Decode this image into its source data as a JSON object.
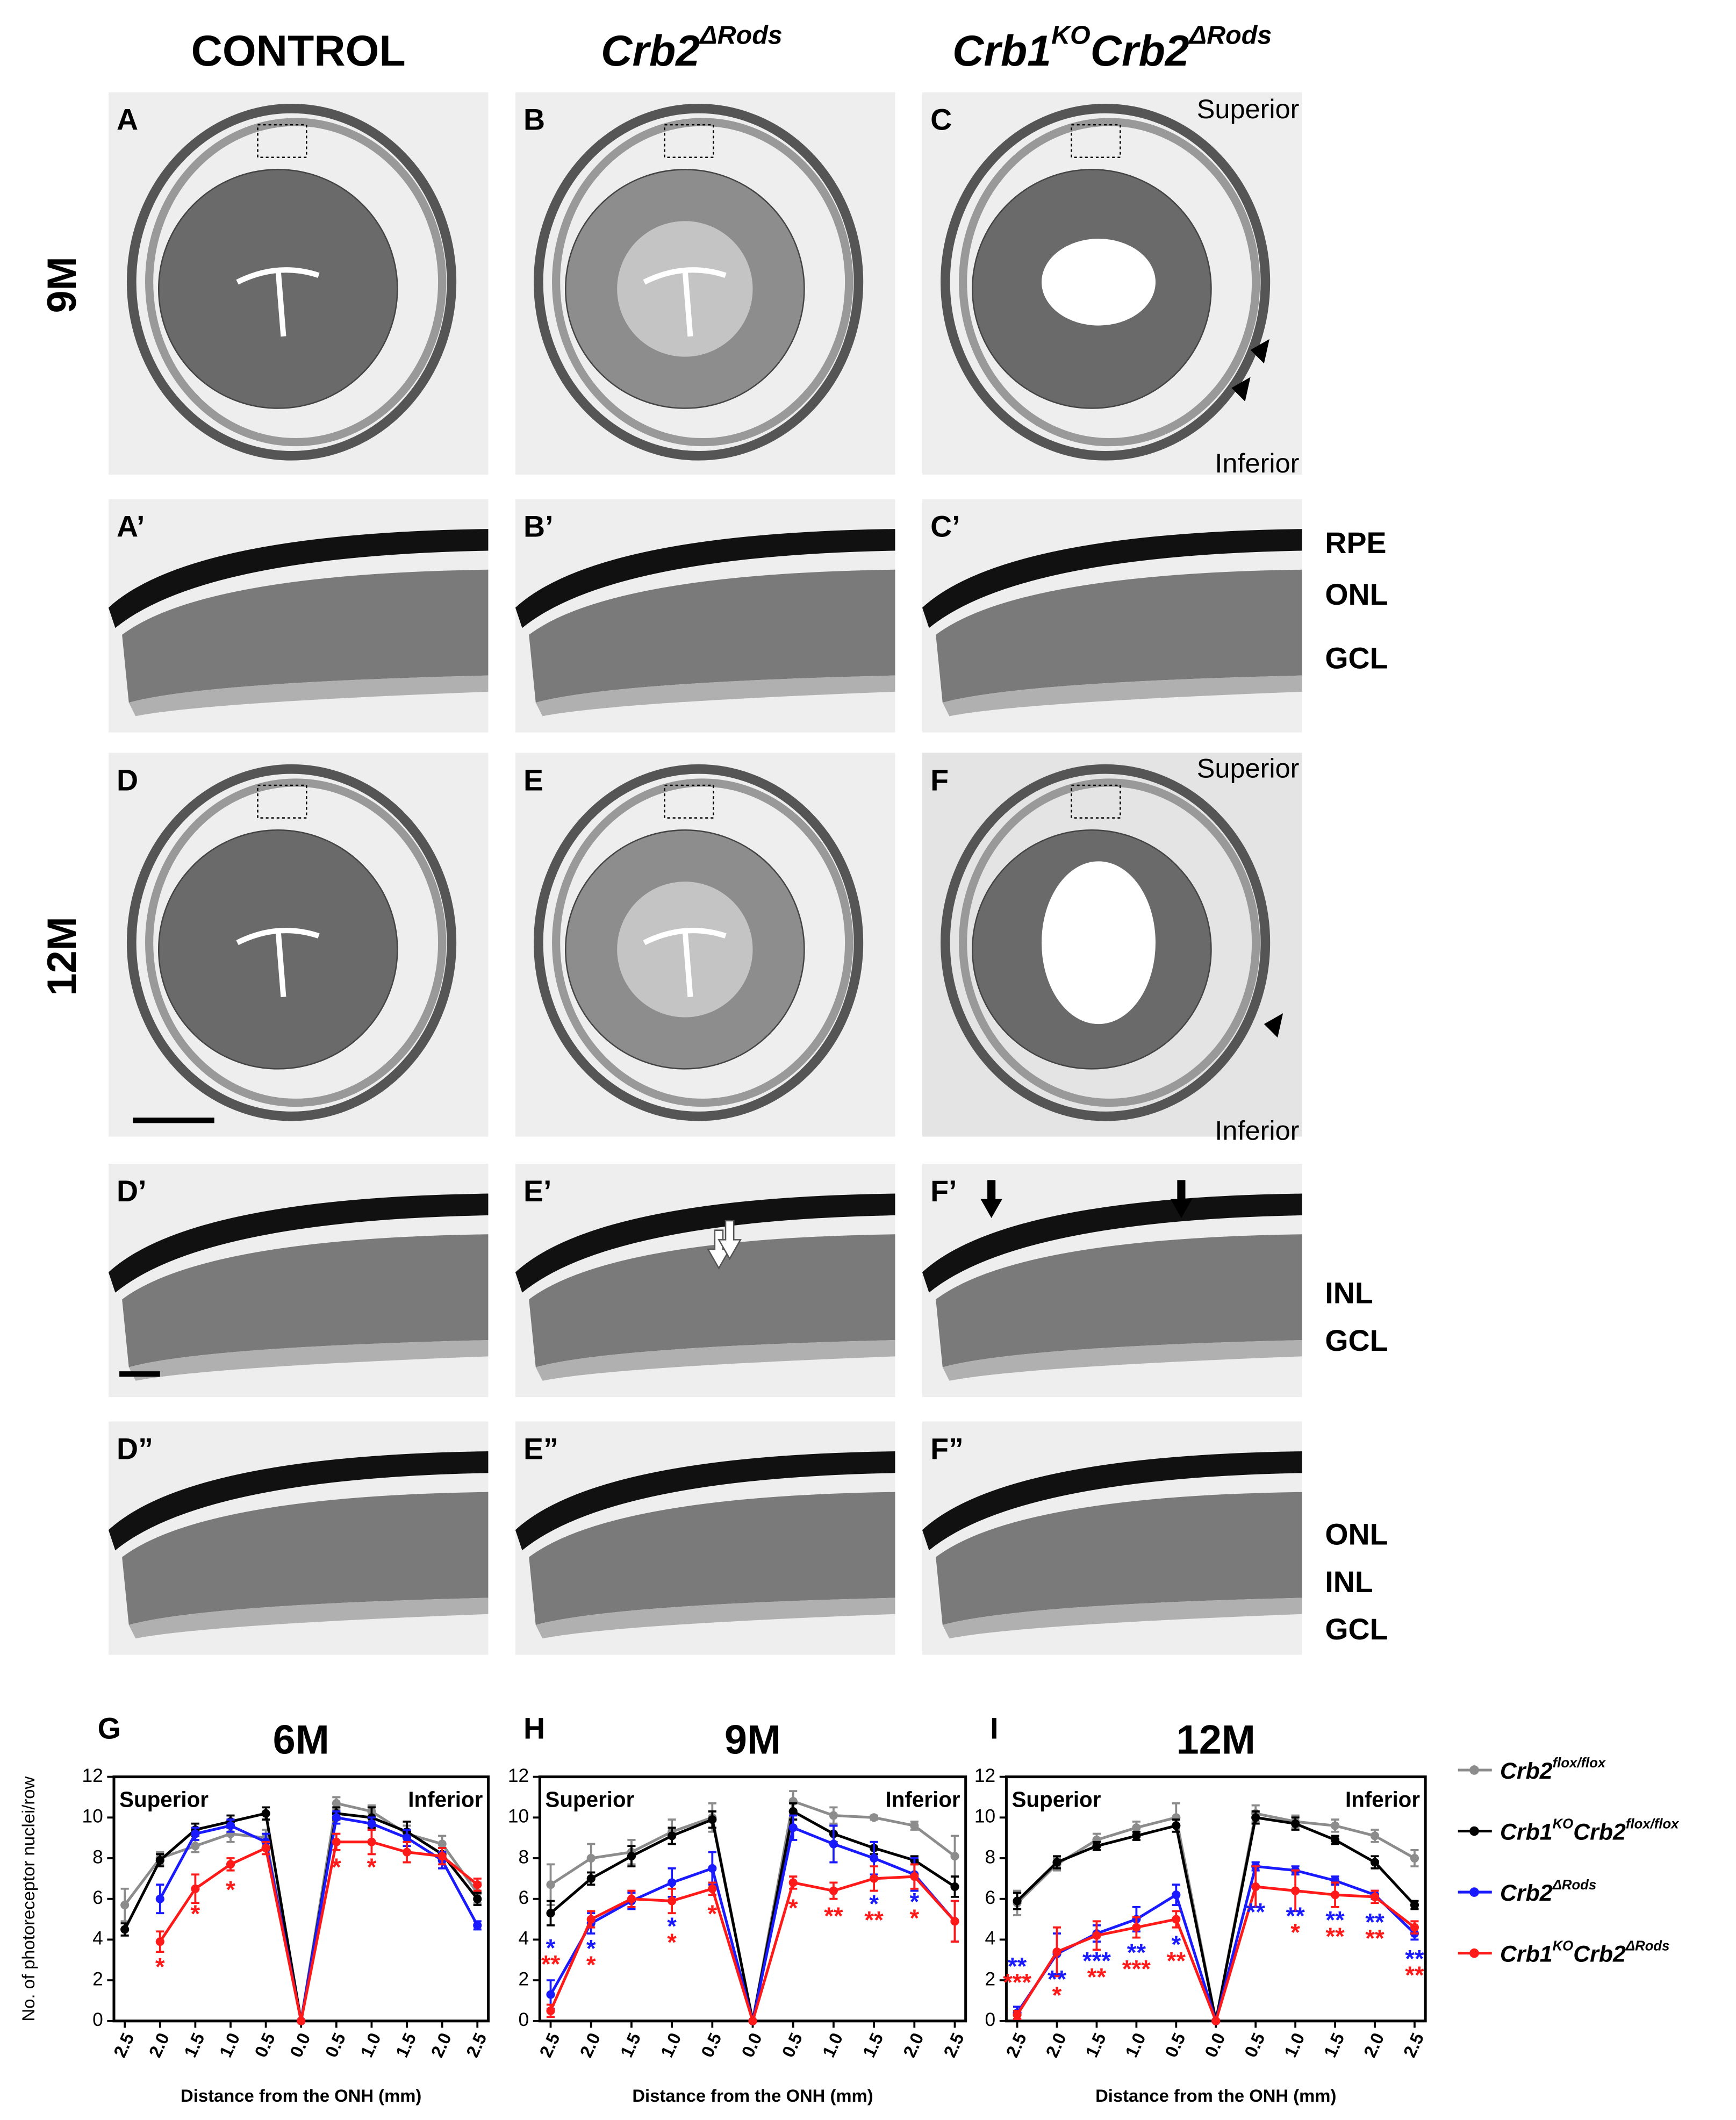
{
  "figure": {
    "headers": [
      [
        "CONTROL"
      ],
      [
        "Crb2",
        "ΔRods"
      ],
      [
        "Crb1",
        "KO",
        "Crb2",
        "ΔRods"
      ]
    ],
    "row_labels": [
      "9M",
      "12M"
    ],
    "panel_letters": [
      "A",
      "B",
      "C",
      "A’",
      "B’",
      "C’",
      "D",
      "E",
      "F",
      "D’",
      "E’",
      "F’",
      "D”",
      "E”",
      "F”"
    ],
    "orientation": [
      "Superior",
      "Inferior",
      "Superior",
      "Inferior"
    ],
    "layers": [
      "RPE",
      "ONL",
      "GCL",
      "INL",
      "GCL",
      "ONL",
      "INL",
      "GCL"
    ]
  },
  "chart_data": [
    {
      "type": "line",
      "letter": "G",
      "title": "6M",
      "region_labels": [
        "Superior",
        "Inferior"
      ],
      "xlabel": "Distance from the ONH (mm)",
      "ylabel": "No. of photoreceptor nuclei/row",
      "categories": [
        "2.5",
        "2.0",
        "1.5",
        "1.0",
        "0.5",
        "0.0",
        "0.5",
        "1.0",
        "1.5",
        "2.0",
        "2.5"
      ],
      "ylim": [
        0,
        12
      ],
      "yticks": [
        0,
        2,
        4,
        6,
        8,
        10,
        12
      ],
      "series": [
        {
          "name": [
            "Crb2",
            "flox/flox"
          ],
          "color": "#8c8c8c",
          "values": [
            5.7,
            8.0,
            8.6,
            9.2,
            9.0,
            0,
            10.7,
            10.3,
            9.2,
            8.7,
            6.3
          ],
          "errors": [
            0.8,
            0.3,
            0.3,
            0.4,
            0.4,
            0,
            0.3,
            0.3,
            0.4,
            0.4,
            0.5
          ]
        },
        {
          "name": [
            "Crb1",
            "KO",
            "Crb2",
            "flox/flox"
          ],
          "color": "#000000",
          "values": [
            4.5,
            7.9,
            9.4,
            9.8,
            10.2,
            0,
            10.2,
            10.0,
            9.3,
            8.2,
            6.0
          ],
          "errors": [
            0.3,
            0.3,
            0.3,
            0.3,
            0.3,
            0,
            0.3,
            0.5,
            0.5,
            0.3,
            0.3
          ]
        },
        {
          "name": [
            "Crb2",
            "ΔRods"
          ],
          "color": "#1a1aff",
          "values": [
            null,
            6.0,
            9.2,
            9.6,
            8.8,
            0,
            10.0,
            9.7,
            9.0,
            7.9,
            4.7
          ],
          "errors": [
            null,
            0.7,
            0.3,
            0.3,
            0.4,
            0,
            0.3,
            0.3,
            0.4,
            0.4,
            0.2
          ],
          "stars": [
            null,
            null,
            null,
            null,
            null,
            null,
            null,
            null,
            null,
            null,
            null
          ]
        },
        {
          "name": [
            "Crb1",
            "KO",
            "Crb2",
            "ΔRods"
          ],
          "color": "#ff1a1a",
          "values": [
            null,
            3.9,
            6.5,
            7.7,
            8.5,
            0,
            8.8,
            8.8,
            8.3,
            8.1,
            6.7
          ],
          "errors": [
            null,
            0.5,
            0.7,
            0.3,
            0.3,
            0,
            0.4,
            0.6,
            0.5,
            0.4,
            0.3
          ],
          "stars": [
            null,
            "*",
            "*",
            "*",
            null,
            null,
            "*",
            "*",
            null,
            null,
            null
          ]
        }
      ]
    },
    {
      "type": "line",
      "letter": "H",
      "title": "9M",
      "region_labels": [
        "Superior",
        "Inferior"
      ],
      "xlabel": "Distance from the ONH (mm)",
      "categories": [
        "2.5",
        "2.0",
        "1.5",
        "1.0",
        "0.5",
        "0.0",
        "0.5",
        "1.0",
        "1.5",
        "2.0",
        "2.5"
      ],
      "ylim": [
        0,
        12
      ],
      "yticks": [
        0,
        2,
        4,
        6,
        8,
        10,
        12
      ],
      "series": [
        {
          "color": "#8c8c8c",
          "values": [
            6.7,
            8.0,
            8.3,
            9.3,
            10.0,
            0,
            10.8,
            10.1,
            10.0,
            9.6,
            8.1
          ],
          "errors": [
            1.0,
            0.7,
            0.6,
            0.6,
            0.7,
            0,
            0.5,
            0.4,
            0.1,
            0.2,
            1.0
          ]
        },
        {
          "color": "#000000",
          "values": [
            5.3,
            7.0,
            8.1,
            9.1,
            9.9,
            0,
            10.3,
            9.2,
            8.5,
            7.9,
            6.6
          ],
          "errors": [
            0.6,
            0.3,
            0.5,
            0.4,
            0.4,
            0,
            0.4,
            0.4,
            0.3,
            0.2,
            0.5
          ]
        },
        {
          "color": "#1a1aff",
          "values": [
            1.3,
            4.8,
            5.9,
            6.8,
            7.5,
            0,
            9.5,
            8.7,
            8.0,
            7.2,
            4.9
          ],
          "errors": [
            0.7,
            0.5,
            0.4,
            0.7,
            0.8,
            0,
            0.6,
            0.9,
            0.8,
            0.8,
            1.0
          ],
          "stars": [
            "*",
            "*",
            null,
            "*",
            null,
            null,
            null,
            null,
            "*",
            "*",
            null
          ]
        },
        {
          "color": "#ff1a1a",
          "values": [
            0.5,
            5.0,
            6.0,
            5.9,
            6.5,
            0,
            6.8,
            6.4,
            7.0,
            7.1,
            4.9
          ],
          "errors": [
            0.3,
            0.4,
            0.4,
            0.6,
            0.3,
            0,
            0.3,
            0.4,
            0.6,
            0.6,
            1.0
          ],
          "stars": [
            "**",
            "*",
            null,
            "*",
            "*",
            null,
            "*",
            "**",
            "**",
            "*",
            null
          ]
        }
      ]
    },
    {
      "type": "line",
      "letter": "I",
      "title": "12M",
      "region_labels": [
        "Superior",
        "Inferior"
      ],
      "xlabel": "Distance from the ONH (mm)",
      "categories": [
        "2.5",
        "2.0",
        "1.5",
        "1.0",
        "0.5",
        "0.0",
        "0.5",
        "1.0",
        "1.5",
        "2.0",
        "2.5"
      ],
      "ylim": [
        0,
        12
      ],
      "yticks": [
        0,
        2,
        4,
        6,
        8,
        10,
        12
      ],
      "series": [
        {
          "color": "#8c8c8c",
          "values": [
            5.8,
            7.7,
            8.9,
            9.5,
            10.0,
            0,
            10.2,
            9.8,
            9.6,
            9.1,
            8.0
          ],
          "errors": [
            0.6,
            0.3,
            0.3,
            0.3,
            0.7,
            0,
            0.4,
            0.3,
            0.3,
            0.3,
            0.4
          ]
        },
        {
          "color": "#000000",
          "values": [
            5.9,
            7.8,
            8.6,
            9.1,
            9.6,
            0,
            10.0,
            9.7,
            8.9,
            7.8,
            5.7
          ],
          "errors": [
            0.4,
            0.3,
            0.2,
            0.2,
            0.3,
            0,
            0.3,
            0.3,
            0.2,
            0.3,
            0.2
          ]
        },
        {
          "color": "#1a1aff",
          "values": [
            0.4,
            3.3,
            4.3,
            5.0,
            6.2,
            0,
            7.6,
            7.4,
            6.9,
            6.2,
            4.3
          ],
          "errors": [
            0.3,
            1.0,
            0.4,
            0.6,
            0.5,
            0,
            0.2,
            0.2,
            0.2,
            0.2,
            0.3
          ],
          "stars": [
            "**",
            "**",
            "***",
            "**",
            "*",
            null,
            "**",
            "**",
            "**",
            "**",
            "**"
          ]
        },
        {
          "color": "#ff1a1a",
          "values": [
            0.3,
            3.4,
            4.2,
            4.6,
            5.0,
            0,
            6.6,
            6.4,
            6.2,
            6.1,
            4.6
          ],
          "errors": [
            0.2,
            1.2,
            0.7,
            0.5,
            0.4,
            0,
            1.0,
            1.0,
            0.6,
            0.3,
            0.3
          ],
          "stars": [
            "***",
            "*",
            "**",
            "***",
            "**",
            null,
            null,
            "*",
            "**",
            "**",
            "**"
          ]
        }
      ]
    }
  ]
}
